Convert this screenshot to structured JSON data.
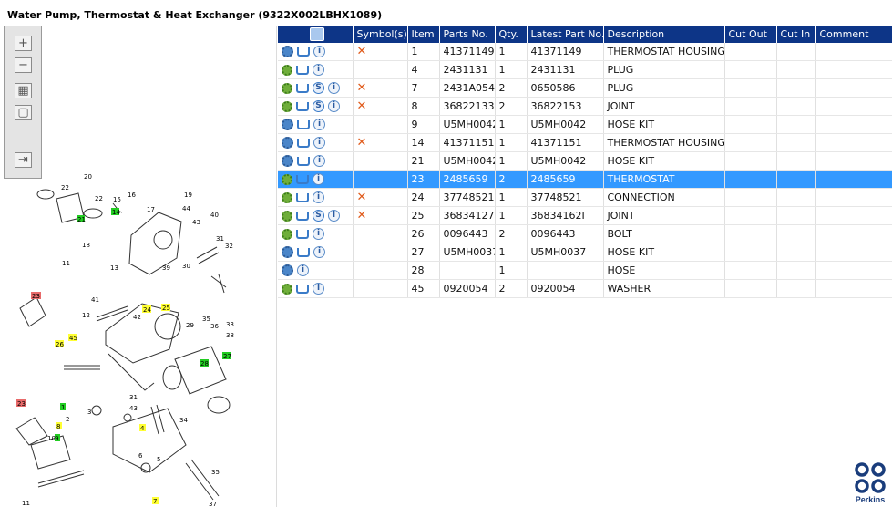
{
  "page_title": "Water Pump, Thermostat & Heat Exchanger (9322X002LBHX1089)",
  "toolbar": {
    "buttons": [
      {
        "name": "zoom-in-button",
        "glyph": "+"
      },
      {
        "name": "zoom-out-button",
        "glyph": "−"
      },
      {
        "name": "fit-all-button",
        "glyph": "▦"
      },
      {
        "name": "fit-window-button",
        "glyph": "▢"
      },
      {
        "name": "export-button",
        "glyph": "⇥"
      }
    ]
  },
  "table": {
    "headers": [
      "",
      "Symbol(s)",
      "Item",
      "Parts No.",
      "Qty.",
      "Latest Part No.",
      "Description",
      "Cut Out",
      "Cut In",
      "Comment"
    ],
    "rows": [
      {
        "icons": [
          "gears",
          "cart",
          "info"
        ],
        "symbol": "✕",
        "item": "1",
        "part_no": "41371149",
        "qty": "1",
        "latest": "41371149",
        "desc": "THERMOSTAT HOUSING",
        "cut_out": "",
        "cut_in": "",
        "comment": ""
      },
      {
        "icons": [
          "gear",
          "cart",
          "info"
        ],
        "symbol": "",
        "item": "4",
        "part_no": "2431131",
        "qty": "1",
        "latest": "2431131",
        "desc": "PLUG",
        "cut_out": "",
        "cut_in": "",
        "comment": ""
      },
      {
        "icons": [
          "gear",
          "cart",
          "s",
          "info"
        ],
        "symbol": "✕",
        "item": "7",
        "part_no": "2431A054",
        "qty": "2",
        "latest": "0650586",
        "desc": "PLUG",
        "cut_out": "",
        "cut_in": "",
        "comment": ""
      },
      {
        "icons": [
          "gear",
          "cart",
          "s",
          "info"
        ],
        "symbol": "✕",
        "item": "8",
        "part_no": "36822133",
        "qty": "2",
        "latest": "36822153",
        "desc": "JOINT",
        "cut_out": "",
        "cut_in": "",
        "comment": ""
      },
      {
        "icons": [
          "gears",
          "cart",
          "info"
        ],
        "symbol": "",
        "item": "9",
        "part_no": "U5MH0042",
        "qty": "1",
        "latest": "U5MH0042",
        "desc": "HOSE KIT",
        "cut_out": "",
        "cut_in": "",
        "comment": ""
      },
      {
        "icons": [
          "gears",
          "cart",
          "info"
        ],
        "symbol": "✕",
        "item": "14",
        "part_no": "41371151",
        "qty": "1",
        "latest": "41371151",
        "desc": "THERMOSTAT HOUSING",
        "cut_out": "",
        "cut_in": "",
        "comment": ""
      },
      {
        "icons": [
          "gears",
          "cart",
          "info"
        ],
        "symbol": "",
        "item": "21",
        "part_no": "U5MH0042",
        "qty": "1",
        "latest": "U5MH0042",
        "desc": "HOSE KIT",
        "cut_out": "",
        "cut_in": "",
        "comment": ""
      },
      {
        "icons": [
          "gear",
          "cart",
          "info"
        ],
        "symbol": "",
        "item": "23",
        "part_no": "2485659",
        "qty": "2",
        "latest": "2485659",
        "desc": "THERMOSTAT",
        "cut_out": "",
        "cut_in": "",
        "comment": "",
        "selected": true
      },
      {
        "icons": [
          "gear",
          "cart",
          "info"
        ],
        "symbol": "✕",
        "item": "24",
        "part_no": "37748521",
        "qty": "1",
        "latest": "37748521",
        "desc": "CONNECTION",
        "cut_out": "",
        "cut_in": "",
        "comment": ""
      },
      {
        "icons": [
          "gear",
          "cart",
          "s",
          "info"
        ],
        "symbol": "✕",
        "item": "25",
        "part_no": "36834127",
        "qty": "1",
        "latest": "36834162I",
        "desc": "JOINT",
        "cut_out": "",
        "cut_in": "",
        "comment": ""
      },
      {
        "icons": [
          "gear",
          "cart",
          "info"
        ],
        "symbol": "",
        "item": "26",
        "part_no": "0096443",
        "qty": "2",
        "latest": "0096443",
        "desc": "BOLT",
        "cut_out": "",
        "cut_in": "",
        "comment": ""
      },
      {
        "icons": [
          "gears",
          "cart",
          "info"
        ],
        "symbol": "",
        "item": "27",
        "part_no": "U5MH0037",
        "qty": "1",
        "latest": "U5MH0037",
        "desc": "HOSE KIT",
        "cut_out": "",
        "cut_in": "",
        "comment": ""
      },
      {
        "icons": [
          "gears",
          "info"
        ],
        "symbol": "",
        "item": "28",
        "part_no": "",
        "qty": "1",
        "latest": "",
        "desc": "HOSE",
        "cut_out": "",
        "cut_in": "",
        "comment": ""
      },
      {
        "icons": [
          "gear",
          "cart",
          "info"
        ],
        "symbol": "",
        "item": "45",
        "part_no": "0920054",
        "qty": "2",
        "latest": "0920054",
        "desc": "WASHER",
        "cut_out": "",
        "cut_in": "",
        "comment": ""
      }
    ]
  },
  "diagram": {
    "labels_plain": [
      "20",
      "22",
      "22",
      "15",
      "16",
      "19",
      "17",
      "44",
      "43",
      "40",
      "18",
      "31",
      "32",
      "11",
      "13",
      "39",
      "30",
      "41",
      "12",
      "42",
      "29",
      "35",
      "36",
      "33",
      "38",
      "34",
      "2",
      "3",
      "10",
      "6",
      "5",
      "35",
      "37",
      "11",
      "12",
      "31",
      "43"
    ],
    "labels_green": [
      "21",
      "14",
      "27",
      "28",
      "1",
      "9"
    ],
    "labels_yellow": [
      "24",
      "25",
      "26",
      "45",
      "8",
      "4",
      "7"
    ],
    "labels_red": [
      "23",
      "23"
    ]
  },
  "logo": {
    "text": "Perkins"
  },
  "colors": {
    "header_bg": "#0d3587",
    "selected_row": "#3399ff",
    "symbol_x": "#e05a1a"
  }
}
